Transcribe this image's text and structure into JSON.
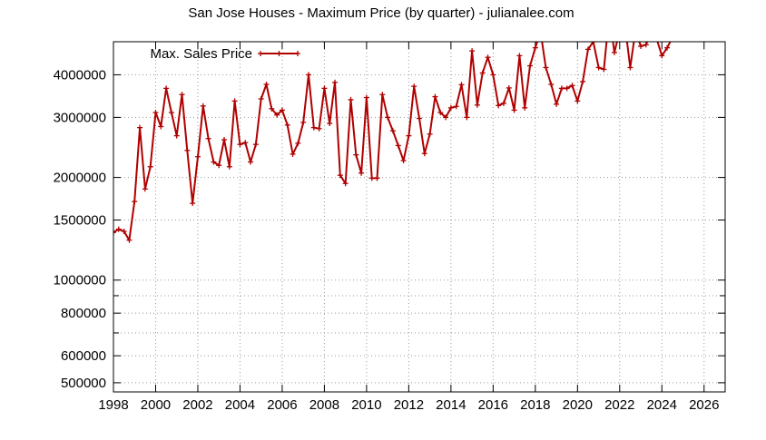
{
  "chart_data": {
    "type": "line",
    "title": "San Jose Houses - Maximum Price (by quarter) - julianalee.com",
    "xlabel": "",
    "ylabel": "",
    "xlim": [
      1998,
      2027
    ],
    "ylim": [
      470000,
      5000000
    ],
    "y_scale": "log",
    "grid": true,
    "legend_position": "top-left",
    "x_ticks": [
      "1998",
      "2000",
      "2002",
      "2004",
      "2006",
      "2008",
      "2010",
      "2012",
      "2014",
      "2016",
      "2018",
      "2020",
      "2022",
      "2024",
      "2026"
    ],
    "y_ticks": [
      "500000",
      "600000",
      "800000",
      "1000000",
      "1500000",
      "2000000",
      "3000000",
      "4000000"
    ],
    "colors": {
      "series": "#b00000",
      "grid": "#999999",
      "axis": "#000000"
    },
    "series": [
      {
        "name": "Max. Sales Price",
        "x": [
          1998.0,
          1998.25,
          1998.5,
          1998.75,
          1999.0,
          1999.25,
          1999.5,
          1999.75,
          2000.0,
          2000.25,
          2000.5,
          2000.75,
          2001.0,
          2001.25,
          2001.5,
          2001.75,
          2002.0,
          2002.25,
          2002.5,
          2002.75,
          2003.0,
          2003.25,
          2003.5,
          2003.75,
          2004.0,
          2004.25,
          2004.5,
          2004.75,
          2005.0,
          2005.25,
          2005.5,
          2005.75,
          2006.0,
          2006.25,
          2006.5,
          2006.75,
          2007.0,
          2007.25,
          2007.5,
          2007.75,
          2008.0,
          2008.25,
          2008.5,
          2008.75,
          2009.0,
          2009.25,
          2009.5,
          2009.75,
          2010.0,
          2010.25,
          2010.5,
          2010.75,
          2011.0,
          2011.25,
          2011.5,
          2011.75,
          2012.0,
          2012.25,
          2012.5,
          2012.75,
          2013.0,
          2013.25,
          2013.5,
          2013.75,
          2014.0,
          2014.25,
          2014.5,
          2014.75,
          2015.0,
          2015.25,
          2015.5,
          2015.75,
          2016.0,
          2016.25,
          2016.5,
          2016.75,
          2017.0,
          2017.25,
          2017.5,
          2017.75,
          2018.0,
          2018.25,
          2018.5,
          2018.75,
          2019.0,
          2019.25,
          2019.5,
          2019.75,
          2020.0,
          2020.25,
          2020.5,
          2020.75,
          2021.0,
          2021.25,
          2021.5,
          2021.75,
          2022.0,
          2022.25,
          2022.5,
          2022.75,
          2023.0,
          2023.25,
          2023.5,
          2023.75,
          2024.0,
          2024.25,
          2024.5,
          2024.75,
          2025.0
        ],
        "values": [
          1380000,
          1410000,
          1390000,
          1310000,
          1700000,
          2800000,
          1850000,
          2150000,
          3100000,
          2820000,
          3650000,
          3100000,
          2650000,
          3500000,
          2400000,
          1680000,
          2300000,
          3240000,
          2600000,
          2220000,
          2170000,
          2580000,
          2150000,
          3350000,
          2500000,
          2530000,
          2220000,
          2500000,
          3400000,
          3750000,
          3180000,
          3050000,
          3150000,
          2850000,
          2340000,
          2520000,
          2900000,
          4000000,
          2800000,
          2780000,
          3650000,
          2880000,
          3800000,
          2030000,
          1920000,
          3380000,
          2330000,
          2060000,
          3430000,
          1990000,
          1990000,
          3500000,
          3000000,
          2740000,
          2480000,
          2240000,
          2650000,
          3700000,
          2980000,
          2350000,
          2680000,
          3450000,
          3100000,
          3000000,
          3200000,
          3230000,
          3740000,
          3000000,
          4700000,
          3260000,
          4050000,
          4500000,
          4000000,
          3250000,
          3300000,
          3660000,
          3150000,
          4550000,
          3200000,
          4250000,
          4800000,
          5350000,
          4200000,
          3750000,
          3280000,
          3650000,
          3650000,
          3720000,
          3350000,
          3820000,
          4750000,
          5000000,
          4200000,
          4150000,
          6000000,
          4650000,
          5400000,
          5600000,
          4200000,
          5400000,
          4850000,
          4900000,
          5350000,
          5100000,
          4550000,
          4800000,
          5150000,
          5200000,
          5300000
        ]
      }
    ]
  }
}
